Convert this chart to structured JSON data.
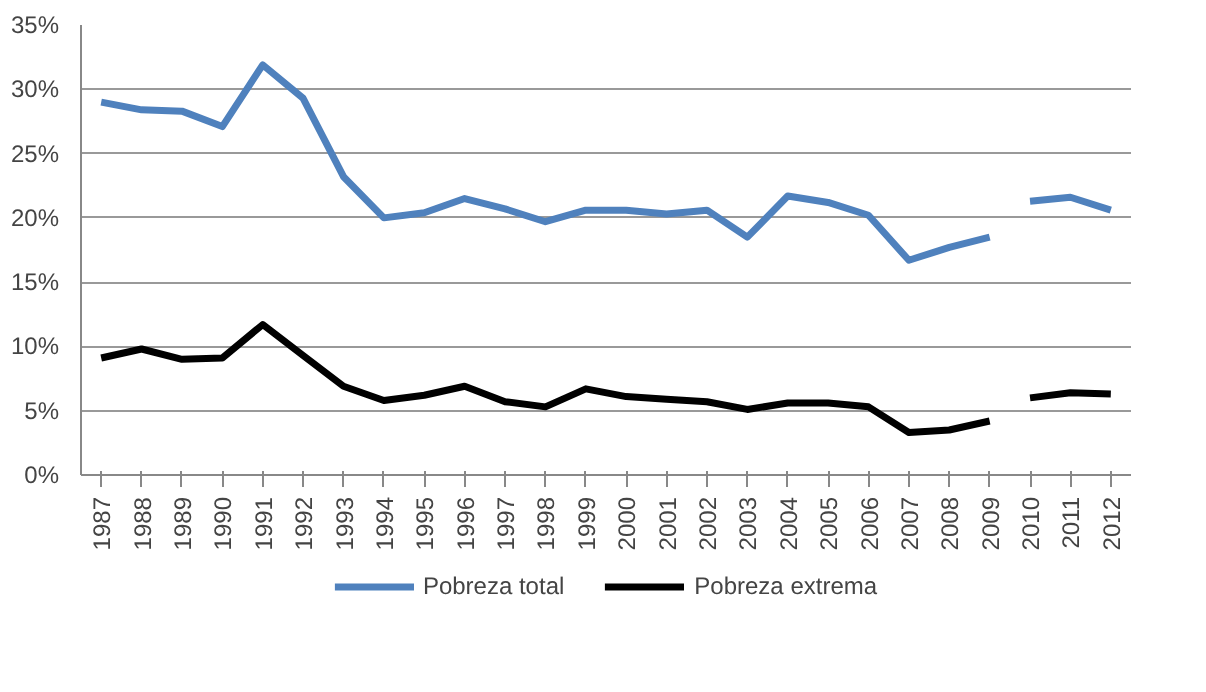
{
  "chart_data": {
    "type": "line",
    "categories": [
      "1987",
      "1988",
      "1989",
      "1990",
      "1991",
      "1992",
      "1993",
      "1994",
      "1995",
      "1996",
      "1997",
      "1998",
      "1999",
      "2000",
      "2001",
      "2002",
      "2003",
      "2004",
      "2005",
      "2006",
      "2007",
      "2008",
      "2009",
      "2010",
      "2011",
      "2012"
    ],
    "series": [
      {
        "name": "Pobreza total",
        "color": "#4f81bd",
        "values": [
          29.0,
          28.4,
          28.3,
          27.1,
          31.9,
          29.3,
          23.2,
          20.0,
          20.4,
          21.5,
          20.7,
          19.7,
          20.6,
          20.6,
          20.3,
          20.6,
          18.5,
          21.7,
          21.2,
          20.2,
          16.7,
          17.7,
          18.5,
          null,
          null,
          null
        ]
      },
      {
        "color": "#4f81bd",
        "values": [
          null,
          null,
          null,
          null,
          null,
          null,
          null,
          null,
          null,
          null,
          null,
          null,
          null,
          null,
          null,
          null,
          null,
          null,
          null,
          null,
          null,
          null,
          null,
          21.3,
          21.6,
          20.6
        ]
      },
      {
        "name": "Pobreza extrema",
        "color": "#000000",
        "values": [
          9.1,
          9.8,
          9.0,
          9.1,
          11.7,
          9.3,
          6.9,
          5.8,
          6.2,
          6.9,
          5.7,
          5.3,
          6.7,
          6.1,
          5.9,
          5.7,
          5.1,
          5.6,
          5.6,
          5.3,
          3.3,
          3.5,
          4.2,
          null,
          null,
          null
        ]
      },
      {
        "color": "#000000",
        "values": [
          null,
          null,
          null,
          null,
          null,
          null,
          null,
          null,
          null,
          null,
          null,
          null,
          null,
          null,
          null,
          null,
          null,
          null,
          null,
          null,
          null,
          null,
          null,
          6.0,
          6.4,
          6.3
        ]
      }
    ],
    "ylim": [
      0,
      35
    ],
    "yticks": [
      {
        "value": 0,
        "label": "0%"
      },
      {
        "value": 5,
        "label": "5%"
      },
      {
        "value": 10,
        "label": "10%"
      },
      {
        "value": 15,
        "label": "15%"
      },
      {
        "value": 20,
        "label": "20%"
      },
      {
        "value": 25,
        "label": "25%"
      },
      {
        "value": 30,
        "label": "30%"
      },
      {
        "value": 35,
        "label": "35%"
      }
    ],
    "grid": "y",
    "legend": "bottom",
    "marker": "none",
    "line_style": "solid"
  }
}
